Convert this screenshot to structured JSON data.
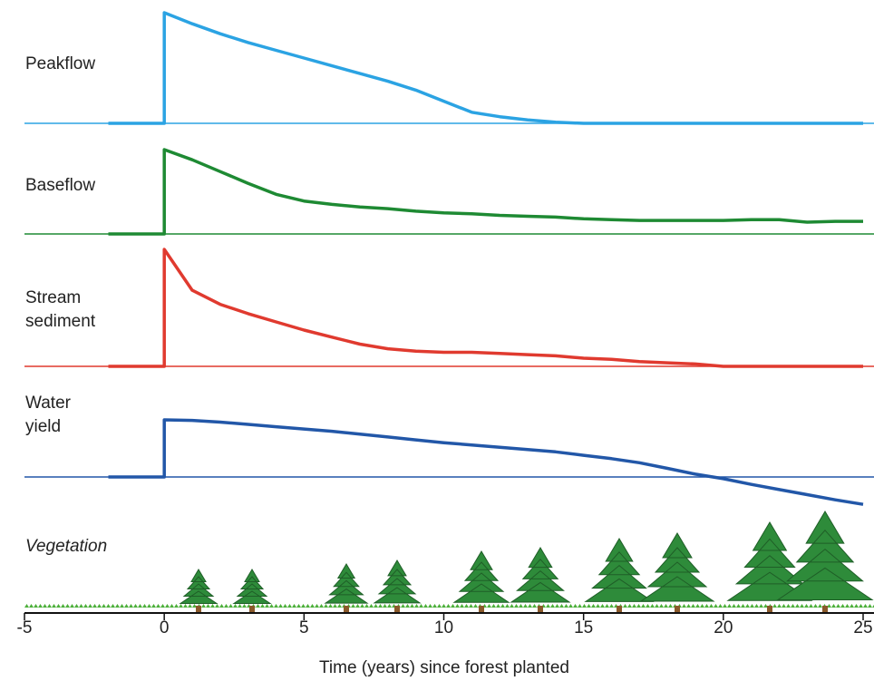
{
  "chart_data": {
    "type": "line",
    "x_label": "Time (years) since forest planted",
    "xlim": [
      -5,
      25.4
    ],
    "xticks": [
      -5,
      0,
      5,
      10,
      15,
      20,
      25
    ],
    "x": [
      -2,
      0,
      0,
      1,
      2,
      3,
      4,
      5,
      6,
      7,
      8,
      9,
      10,
      11,
      12,
      13,
      14,
      15,
      16,
      17,
      18,
      19,
      20,
      21,
      22,
      23,
      24,
      25
    ],
    "series": [
      {
        "name": "Peakflow",
        "color": "#2ba3e3",
        "values": [
          0,
          0,
          100,
          90,
          81,
          73,
          66,
          59,
          52,
          45,
          38,
          30,
          20,
          10,
          6,
          3,
          1,
          0,
          0,
          0,
          0,
          0,
          0,
          0,
          0,
          0,
          0,
          0
        ]
      },
      {
        "name": "Baseflow",
        "color": "#1e8a33",
        "values": [
          0,
          0,
          100,
          88,
          74,
          60,
          47,
          39,
          35,
          32,
          30,
          27,
          25,
          24,
          22,
          21,
          20,
          18,
          17,
          16,
          16,
          16,
          16,
          17,
          17,
          14,
          15,
          15
        ]
      },
      {
        "name": "Stream sediment",
        "color": "#e03a2f",
        "values": [
          0,
          0,
          100,
          65,
          53,
          45,
          38,
          31,
          25,
          19,
          15,
          13,
          12,
          12,
          11,
          10,
          9,
          7,
          6,
          4,
          3,
          2,
          0,
          0,
          0,
          0,
          0,
          0
        ]
      },
      {
        "name": "Water yield",
        "color": "#2257a8",
        "values": [
          0,
          0,
          100,
          99,
          96,
          92,
          88,
          84,
          80,
          75,
          70,
          65,
          60,
          56,
          52,
          48,
          44,
          38,
          32,
          25,
          15,
          5,
          -3,
          -13,
          -22,
          -31,
          -40,
          -48
        ]
      }
    ],
    "vegetation_label": "Vegetation"
  }
}
